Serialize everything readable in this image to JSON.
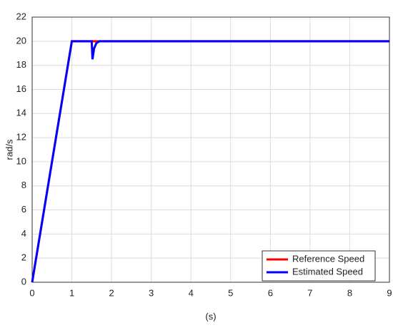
{
  "chart_data": {
    "type": "line",
    "xlabel": "(s)",
    "ylabel": "rad/s",
    "series": [
      {
        "name": "Reference Speed",
        "color": "#ff0000",
        "x": [
          0,
          1,
          9
        ],
        "values": [
          0,
          20,
          20
        ]
      },
      {
        "name": "Estimated Speed",
        "color": "#0000ff",
        "x": [
          0,
          1,
          1.5,
          1.52,
          1.56,
          1.62,
          1.7,
          9
        ],
        "values": [
          0,
          20,
          20,
          18.5,
          19.4,
          19.85,
          20,
          20
        ]
      }
    ],
    "xlim": [
      0,
      9
    ],
    "xticks": [
      0,
      1,
      2,
      3,
      4,
      5,
      6,
      7,
      8,
      9
    ],
    "ylim": [
      0,
      22
    ],
    "yticks": [
      0,
      2,
      4,
      6,
      8,
      10,
      12,
      14,
      16,
      18,
      20,
      22
    ],
    "grid": true,
    "legend": "lower right"
  }
}
